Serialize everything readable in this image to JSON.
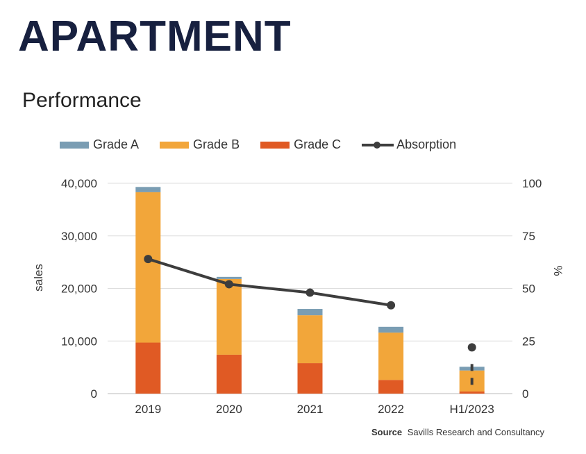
{
  "header": {
    "title": "APARTMENT"
  },
  "chart_data": {
    "type": "bar",
    "stacked": true,
    "title": "Performance",
    "categories": [
      "2019",
      "2020",
      "2021",
      "2022",
      "H1/2023"
    ],
    "series": [
      {
        "name": "Grade C",
        "color": "#e05a24",
        "values": [
          9700,
          7400,
          5800,
          2600,
          400
        ]
      },
      {
        "name": "Grade B",
        "color": "#f2a63a",
        "values": [
          28600,
          14400,
          9100,
          9000,
          4000
        ]
      },
      {
        "name": "Grade A",
        "color": "#7a9db3",
        "values": [
          1000,
          400,
          1200,
          1100,
          700
        ]
      }
    ],
    "line_series": {
      "name": "Absorption",
      "color": "#3d3d3d",
      "values": [
        64,
        52,
        48,
        42,
        22
      ],
      "dashed_from_index": 3
    },
    "ylabel": "sales",
    "ylabel_right": "%",
    "ylim": [
      0,
      40000
    ],
    "ylim_right": [
      0,
      100
    ],
    "yticks": [
      "0",
      "10,000",
      "20,000",
      "30,000",
      "40,000"
    ],
    "yticks_right": [
      "0",
      "25",
      "50",
      "75",
      "100"
    ],
    "grid": true,
    "legend_position": "top"
  },
  "legend_items": [
    "Grade A",
    "Grade B",
    "Grade C",
    "Absorption"
  ],
  "source": {
    "label": "Source",
    "text": "Savills Research and Consultancy"
  }
}
